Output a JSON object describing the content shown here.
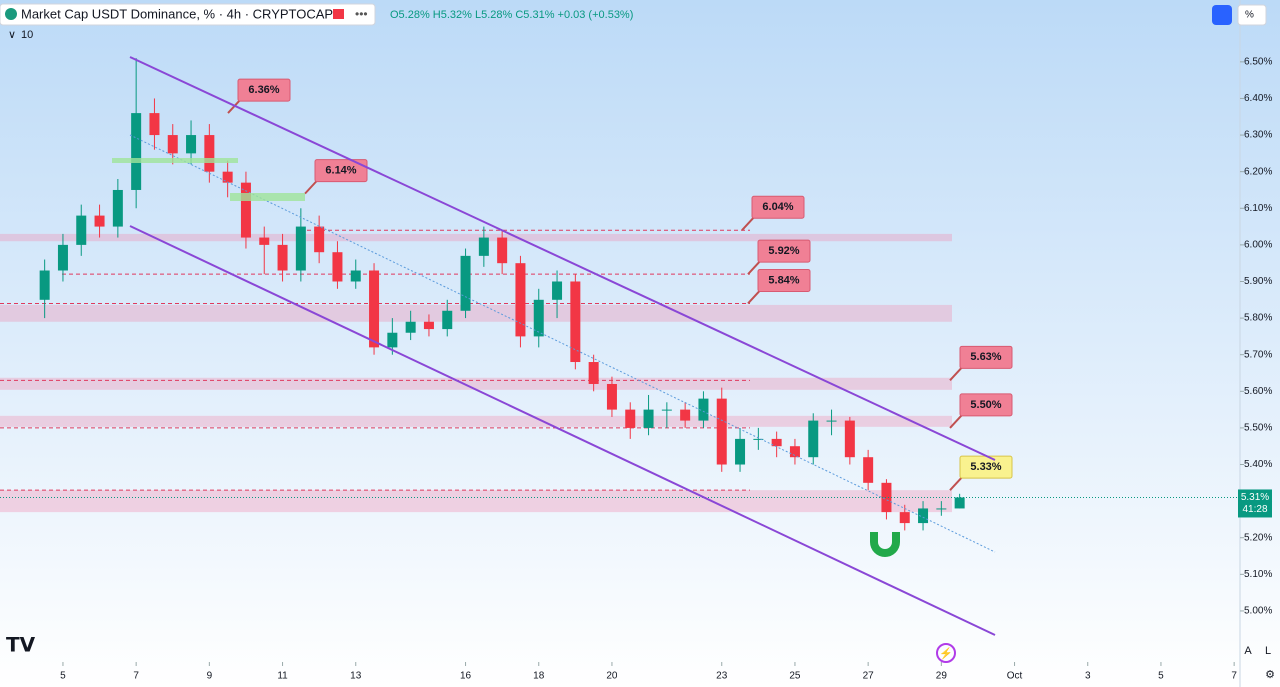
{
  "header": {
    "title": "Market Cap USDT Dominance, % · 4h · CRYPTOCAP",
    "ohlc": "O5.28% H5.32% L5.28% C5.31% +0.03 (+0.53%)",
    "indicator": "10",
    "scale_button": "%",
    "auto_button": "A",
    "log_button": "L"
  },
  "chart_data": {
    "type": "candlestick",
    "x": [
      4.5,
      5,
      5.5,
      6,
      6.5,
      7,
      7.5,
      8,
      8.5,
      9,
      9.5,
      10,
      10.5,
      11,
      11.5,
      12,
      12.5,
      13,
      13.5,
      14,
      14.5,
      15,
      15.5,
      16,
      16.5,
      17,
      17.5,
      18,
      18.5,
      19,
      19.5,
      20,
      20.5,
      21,
      21.5,
      22,
      22.5,
      23,
      23.5,
      24,
      24.5,
      25,
      25.5,
      26,
      26.5,
      27,
      27.5,
      28,
      28.5,
      29,
      29.5
    ],
    "open": [
      5.85,
      5.93,
      6.0,
      6.08,
      6.05,
      6.15,
      6.36,
      6.3,
      6.25,
      6.3,
      6.2,
      6.17,
      6.02,
      6.0,
      5.93,
      6.05,
      5.98,
      5.9,
      5.93,
      5.72,
      5.76,
      5.79,
      5.77,
      5.82,
      5.97,
      6.02,
      5.95,
      5.75,
      5.85,
      5.9,
      5.68,
      5.62,
      5.55,
      5.5,
      5.55,
      5.55,
      5.52,
      5.58,
      5.4,
      5.47,
      5.47,
      5.45,
      5.42,
      5.52,
      5.52,
      5.42,
      5.35,
      5.27,
      5.24,
      5.28,
      5.28
    ],
    "high": [
      5.96,
      6.03,
      6.11,
      6.11,
      6.18,
      6.51,
      6.4,
      6.33,
      6.34,
      6.33,
      6.23,
      6.2,
      6.05,
      6.03,
      6.1,
      6.08,
      6.01,
      5.96,
      5.95,
      5.8,
      5.82,
      5.81,
      5.85,
      5.99,
      6.05,
      6.04,
      5.97,
      5.88,
      5.93,
      5.92,
      5.7,
      5.64,
      5.57,
      5.59,
      5.57,
      5.57,
      5.6,
      5.61,
      5.5,
      5.5,
      5.49,
      5.47,
      5.54,
      5.55,
      5.53,
      5.44,
      5.36,
      5.29,
      5.3,
      5.3,
      5.32
    ],
    "low": [
      5.8,
      5.9,
      5.97,
      6.02,
      6.02,
      6.1,
      6.26,
      6.22,
      6.22,
      6.17,
      6.13,
      5.99,
      5.92,
      5.9,
      5.9,
      5.95,
      5.88,
      5.88,
      5.7,
      5.7,
      5.74,
      5.75,
      5.75,
      5.8,
      5.94,
      5.92,
      5.72,
      5.72,
      5.8,
      5.66,
      5.6,
      5.53,
      5.47,
      5.48,
      5.5,
      5.5,
      5.5,
      5.38,
      5.38,
      5.44,
      5.42,
      5.4,
      5.4,
      5.48,
      5.4,
      5.33,
      5.25,
      5.22,
      5.22,
      5.26,
      5.28
    ],
    "close": [
      5.93,
      6.0,
      6.08,
      6.05,
      6.15,
      6.36,
      6.3,
      6.25,
      6.3,
      6.2,
      6.17,
      6.02,
      6.0,
      5.93,
      6.05,
      5.98,
      5.9,
      5.93,
      5.72,
      5.76,
      5.79,
      5.77,
      5.82,
      5.97,
      6.02,
      5.95,
      5.75,
      5.85,
      5.9,
      5.68,
      5.62,
      5.55,
      5.5,
      5.55,
      5.55,
      5.52,
      5.58,
      5.4,
      5.47,
      5.47,
      5.45,
      5.42,
      5.52,
      5.52,
      5.42,
      5.35,
      5.27,
      5.24,
      5.28,
      5.28,
      5.31
    ],
    "up_color": "#089981",
    "down_color": "#f23645",
    "xlim": [
      3.28,
      37.16
    ],
    "ylim": [
      4.866,
      6.587
    ],
    "xticks": [
      5,
      7,
      9,
      11,
      13,
      16,
      18,
      20,
      23,
      25,
      27,
      29,
      {
        "value": 31,
        "label": "Oct"
      },
      {
        "value": 33,
        "label": "3"
      },
      {
        "value": 35,
        "label": "5"
      },
      {
        "value": 37,
        "label": "7"
      }
    ],
    "yticks": [
      {
        "value": 5.0,
        "label": "5.00%"
      },
      {
        "value": 5.1,
        "label": "5.10%"
      },
      {
        "value": 5.2,
        "label": "5.20%"
      },
      {
        "value": 5.3,
        "label": "5.30%"
      },
      {
        "value": 5.4,
        "label": "5.40%"
      },
      {
        "value": 5.5,
        "label": "5.50%"
      },
      {
        "value": 5.6,
        "label": "5.60%"
      },
      {
        "value": 5.7,
        "label": "5.70%"
      },
      {
        "value": 5.8,
        "label": "5.80%"
      },
      {
        "value": 5.9,
        "label": "5.90%"
      },
      {
        "value": 6.0,
        "label": "6.00%"
      },
      {
        "value": 6.1,
        "label": "6.10%"
      },
      {
        "value": 6.2,
        "label": "6.20%"
      },
      {
        "value": 6.3,
        "label": "6.30%"
      },
      {
        "value": 6.4,
        "label": "6.40%"
      },
      {
        "value": 6.5,
        "label": "6.50%"
      }
    ],
    "levels": {
      "values": [
        6.36,
        6.14,
        6.04,
        5.92,
        5.84,
        5.63,
        5.5,
        5.33
      ],
      "value_labels": [
        "6.36%",
        "6.14%",
        "6.04%",
        "5.92%",
        "5.84%",
        "5.63%",
        "5.50%",
        "5.33%"
      ]
    },
    "zones": [
      {
        "low": 6.01,
        "high": 6.03
      },
      {
        "low": 5.79,
        "high": 5.836
      },
      {
        "low": 5.604,
        "high": 5.637
      },
      {
        "low": 5.503,
        "high": 5.533
      },
      {
        "low": 5.27,
        "high": 5.33
      }
    ],
    "last": {
      "value": 5.31,
      "label": "5.31%",
      "countdown": "41:28"
    }
  }
}
